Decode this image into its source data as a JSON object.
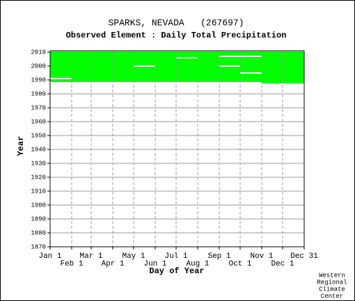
{
  "chart_data": {
    "type": "availability",
    "title": "SPARKS, NEVADA   (267697)",
    "subtitle": "Observed Element : Daily Total Precipitation",
    "x_label": "Day of Year",
    "y_label": "Year",
    "credit": [
      "Western",
      "Regional",
      "Climate",
      "Center"
    ],
    "color": "#00ff00",
    "gap_color": "#ffffff",
    "xlim": [
      1,
      366
    ],
    "ylim": [
      1870,
      2011
    ],
    "xticks": [
      {
        "value": 1,
        "label": "Jan 1"
      },
      {
        "value": 32,
        "label": "Feb 1"
      },
      {
        "value": 60,
        "label": "Mar 1"
      },
      {
        "value": 91,
        "label": "Apr 1"
      },
      {
        "value": 121,
        "label": "May 1"
      },
      {
        "value": 152,
        "label": "Jun 1"
      },
      {
        "value": 182,
        "label": "Jul 1"
      },
      {
        "value": 213,
        "label": "Aug 1"
      },
      {
        "value": 244,
        "label": "Sep 1"
      },
      {
        "value": 274,
        "label": "Oct 1"
      },
      {
        "value": 305,
        "label": "Nov 1"
      },
      {
        "value": 335,
        "label": "Dec 1"
      },
      {
        "value": 366,
        "label": "Dec 31"
      }
    ],
    "yticks": [
      1870,
      1880,
      1890,
      1900,
      1910,
      1920,
      1930,
      1940,
      1950,
      1960,
      1970,
      1980,
      1990,
      2000,
      2010
    ],
    "grid": true,
    "blocks": [
      {
        "days": [
          1,
          366
        ],
        "years": [
          1988.5,
          2010.5
        ]
      },
      {
        "days": [
          305,
          366
        ],
        "years": [
          1987.5,
          1988.5
        ]
      }
    ],
    "gaps": [
      {
        "days": [
          1,
          32
        ],
        "year": 1991
      },
      {
        "days": [
          121,
          152
        ],
        "year": 2000
      },
      {
        "days": [
          182,
          213
        ],
        "year": 2006
      },
      {
        "days": [
          244,
          274
        ],
        "year": 2000
      },
      {
        "days": [
          244,
          305
        ],
        "year": 2007
      },
      {
        "days": [
          274,
          305
        ],
        "year": 1995
      }
    ]
  }
}
